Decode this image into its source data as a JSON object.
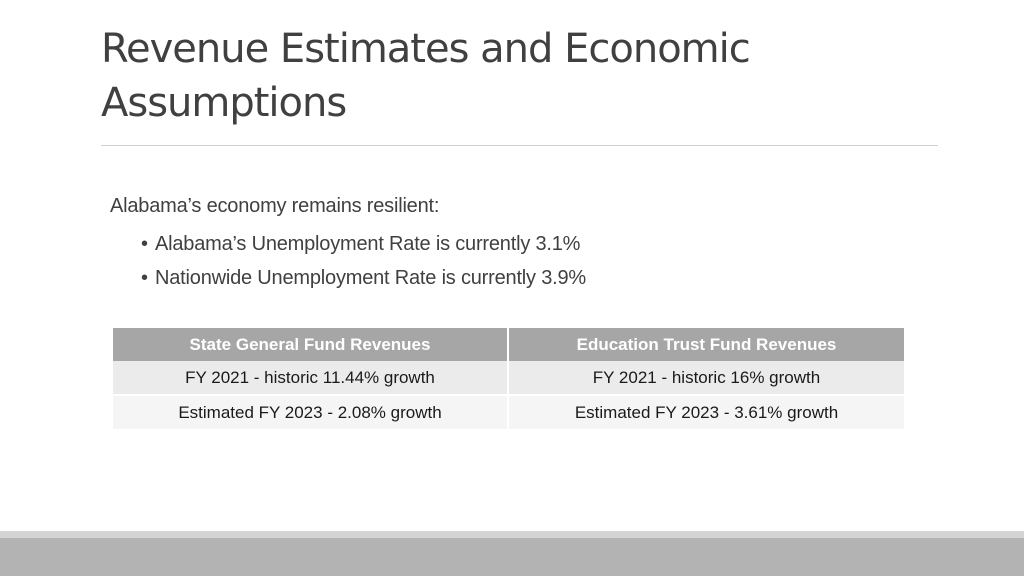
{
  "slide": {
    "title": "Revenue Estimates and Economic Assumptions",
    "intro": "Alabama’s economy remains resilient:",
    "bullets": [
      "Alabama’s Unemployment Rate is currently 3.1%",
      "Nationwide Unemployment Rate is currently 3.9%"
    ],
    "bullet_symbol": "•"
  },
  "table": {
    "headers": [
      "State General Fund Revenues",
      "Education Trust Fund Revenues"
    ],
    "rows": [
      [
        "FY 2021  -  historic 11.44% growth",
        "FY 2021 -  historic 16% growth"
      ],
      [
        "Estimated FY 2023  -  2.08% growth",
        "Estimated FY 2023  -  3.61% growth"
      ]
    ]
  },
  "colors": {
    "title_text": "#404040",
    "header_fill": "#a6a6a6",
    "row_fill_1": "#ebebeb",
    "row_fill_2": "#f5f5f5",
    "footer_bar": "#b3b3b3"
  }
}
